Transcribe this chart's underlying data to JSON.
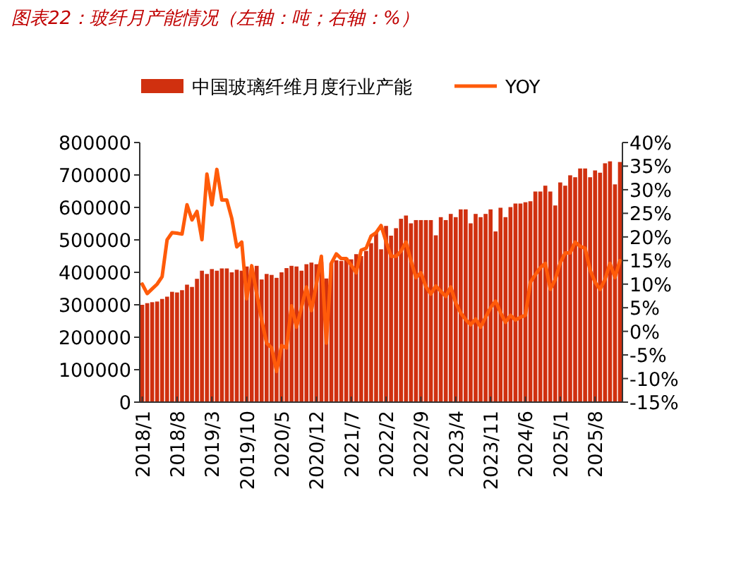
{
  "chart_data": {
    "type": "bar",
    "title": "图表22：玻纤月产能情况（左轴：吨；右轴：%）",
    "categories": [
      "2018/1",
      null,
      null,
      null,
      null,
      null,
      null,
      "2018/8",
      null,
      null,
      null,
      null,
      null,
      null,
      "2019/3",
      null,
      null,
      null,
      null,
      null,
      null,
      "2019/10",
      null,
      null,
      null,
      null,
      null,
      null,
      "2020/5",
      null,
      null,
      null,
      null,
      null,
      null,
      "2020/12",
      null,
      null,
      null,
      null,
      null,
      null,
      "2021/7",
      null,
      null,
      null,
      null,
      null,
      null,
      "2022/2",
      null,
      null,
      null,
      null,
      null,
      null,
      "2022/9",
      null,
      null,
      null,
      null,
      null,
      null,
      "2023/4",
      null,
      null,
      null,
      null,
      null,
      null,
      "2023/11",
      null,
      null,
      null,
      null,
      null,
      null,
      "2024/6",
      null,
      null,
      null,
      null,
      null,
      null,
      "2025/1",
      null,
      null,
      null,
      null,
      null,
      null,
      "2025/8",
      null,
      null,
      null,
      null,
      null
    ],
    "series": [
      {
        "name": "中国玻璃纤维月度行业产能",
        "color": "#d0300f",
        "values": [
          300000,
          305000,
          308000,
          310000,
          318000,
          325000,
          340000,
          338000,
          345000,
          362000,
          355000,
          380000,
          405000,
          395000,
          410000,
          405000,
          412000,
          412000,
          400000,
          408000,
          405000,
          418000,
          412000,
          420000,
          378000,
          395000,
          392000,
          383000,
          400000,
          413000,
          420000,
          418000,
          405000,
          425000,
          430000,
          425000,
          432000,
          381000,
          428000,
          437000,
          435000,
          445000,
          440000,
          456000,
          450000,
          466000,
          490000,
          522000,
          471000,
          543000,
          513000,
          536000,
          565000,
          575000,
          551000,
          561000,
          561000,
          561000,
          561000,
          514000,
          570000,
          561000,
          580000,
          570000,
          594000,
          594000,
          551000,
          580000,
          570000,
          580000,
          594000,
          526000,
          599000,
          570000,
          601000,
          612000,
          612000,
          616000,
          619000,
          649000,
          649000,
          667000,
          649000,
          606000,
          677000,
          667000,
          699000,
          693000,
          720000,
          720000,
          693000,
          714000,
          707000,
          736000,
          742000,
          671000,
          740000
        ]
      },
      {
        "name": "YOY",
        "type": "line",
        "axis": "y2",
        "color": "#ff5b0a",
        "values": [
          10,
          8,
          9,
          10,
          11.6,
          19.4,
          20.9,
          20.8,
          20.6,
          26.8,
          23.6,
          25.4,
          19.4,
          33.3,
          26.8,
          34.3,
          27.8,
          27.8,
          23.9,
          17.9,
          18.9,
          6.9,
          13.9,
          8,
          2.4,
          -2.5,
          -3.5,
          -8.5,
          -3,
          -3.5,
          5.4,
          0.9,
          5,
          9.4,
          4.4,
          10,
          15.9,
          -2.5,
          14.4,
          16.4,
          15.4,
          15.4,
          14,
          12.4,
          17.2,
          17.6,
          20.2,
          20.9,
          22.4,
          19,
          15.9,
          15.9,
          17,
          18.9,
          15,
          11.4,
          12.4,
          9.5,
          7.9,
          9.6,
          8.5,
          7.4,
          9.4,
          6,
          3.9,
          2.5,
          1.4,
          2.6,
          0.9,
          3,
          5,
          6.4,
          4,
          1.9,
          3.4,
          2.4,
          3,
          3.4,
          10.4,
          12,
          13.5,
          14.4,
          8.9,
          11,
          14.5,
          16.6,
          16.6,
          18.9,
          18,
          17.6,
          13,
          10.4,
          8.9,
          11,
          14.4,
          11.4,
          15
        ]
      }
    ],
    "ylim": [
      0,
      800000
    ],
    "yticks": [
      0,
      100000,
      200000,
      300000,
      400000,
      500000,
      600000,
      700000,
      800000
    ],
    "y2lim": [
      -15,
      40
    ],
    "y2ticks": [
      {
        "value": -15,
        "label": "-15%"
      },
      {
        "value": -10,
        "label": "-10%"
      },
      {
        "value": -5,
        "label": "-5%"
      },
      {
        "value": 0,
        "label": "0%"
      },
      {
        "value": 5,
        "label": "5%"
      },
      {
        "value": 10,
        "label": "10%"
      },
      {
        "value": 15,
        "label": "15%"
      },
      {
        "value": 20,
        "label": "20%"
      },
      {
        "value": 25,
        "label": "25%"
      },
      {
        "value": 30,
        "label": "30%"
      },
      {
        "value": 35,
        "label": "35%"
      },
      {
        "value": 40,
        "label": "40%"
      }
    ],
    "legend": "top",
    "grid": false
  }
}
